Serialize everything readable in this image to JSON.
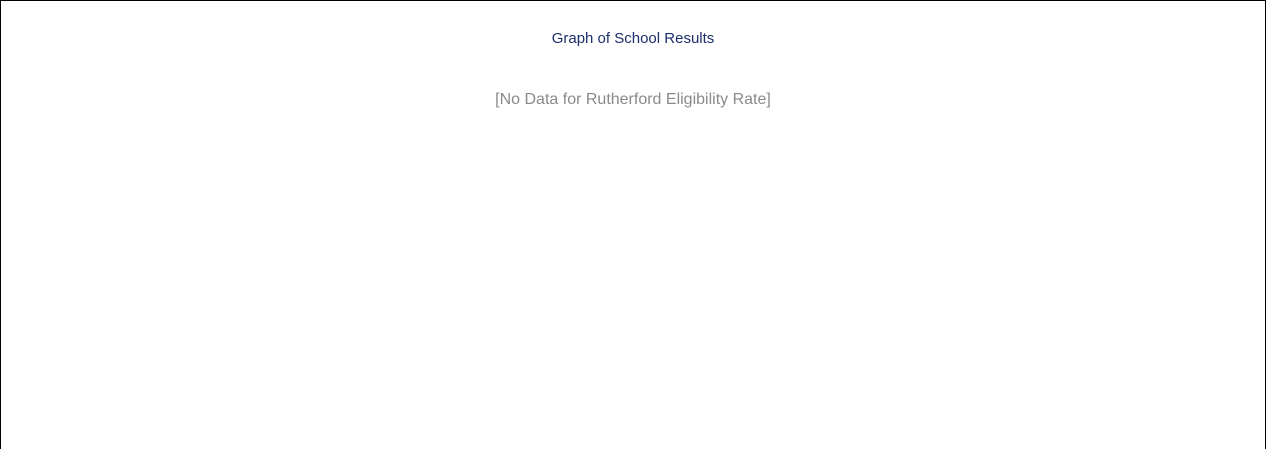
{
  "panel": {
    "title": "Graph of School Results",
    "message": "[No Data for Rutherford Eligibility Rate]"
  }
}
